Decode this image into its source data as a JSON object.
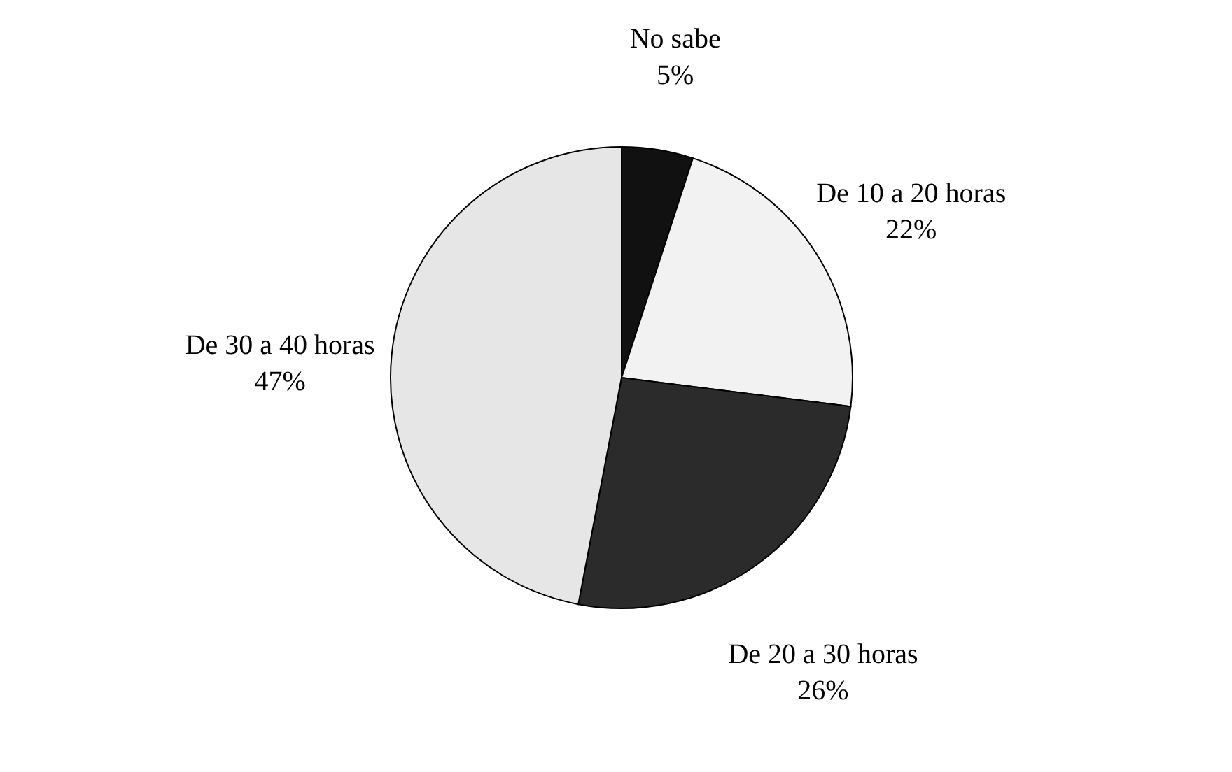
{
  "chart_data": {
    "type": "pie",
    "categories": [
      "No sabe",
      "De 10 a 20 horas",
      "De 20 a 30 horas",
      "De 30 a 40 horas"
    ],
    "values": [
      5,
      22,
      26,
      47
    ],
    "colors": [
      "#111111",
      "#f2f2f2",
      "#2b2b2b",
      "#e6e6e6"
    ],
    "value_labels": [
      "5%",
      "22%",
      "26%",
      "47%"
    ]
  }
}
